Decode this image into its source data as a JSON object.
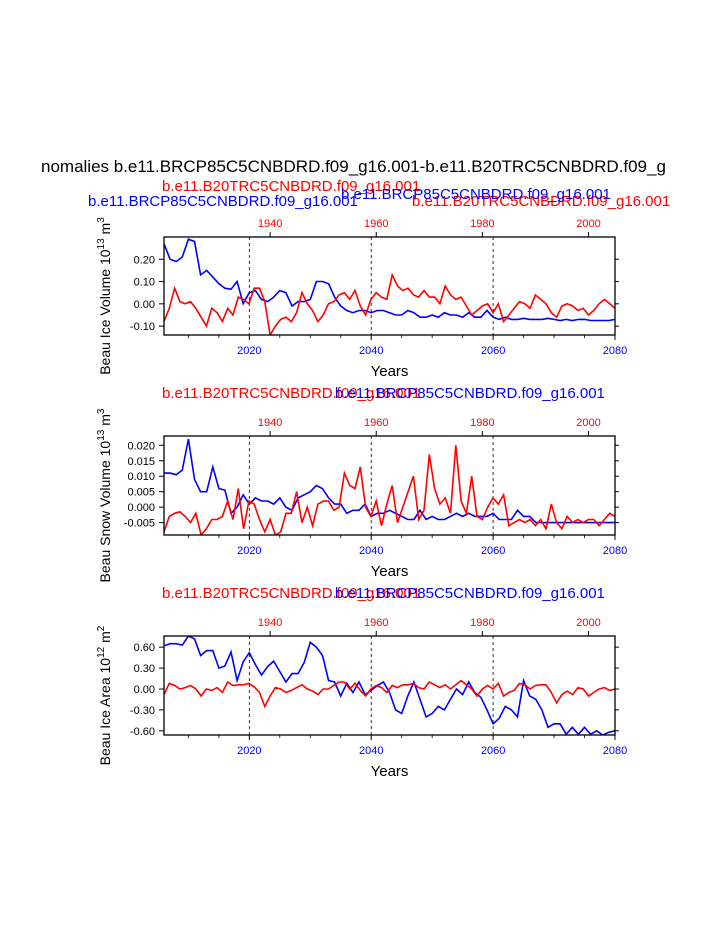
{
  "title": "nomalies b.e11.BRCP85C5CNBDRD.f09_g16.001-b.e11.B20TRC5CNBDRD.f09_g",
  "colors": {
    "rcp": "#0000ff",
    "trc": "#ff0000",
    "axis": "#000000"
  },
  "chart_data": [
    {
      "type": "line",
      "id": "ice-volume",
      "header_blue": "b.e11.BRCP85C5CNBDRD.f09_g16.001",
      "header_red": "b.e11.B20TRC5CNBDRD.f09_g16.001",
      "header_overlap_blue": "b.e11.BRCP85C5CNBDRD.f09_g16.001",
      "header_extra_red": "b.e11.B20TRC5CNBDRD.f09_g16.001",
      "top_axis_label": "",
      "xlabel": "Years",
      "ylabel": "Beau Ice Volume 10",
      "ylabel_exp": "13",
      "ylabel_unit": " m",
      "ylabel_unit_exp": "3",
      "xlim_bottom": [
        2006,
        2080
      ],
      "xlim_top": [
        1920,
        2005
      ],
      "ylim": [
        -0.14,
        0.3
      ],
      "yticks": [
        -0.1,
        0.0,
        0.1,
        0.2
      ],
      "ytick_labels": [
        "-0.10",
        "0.00",
        "0.10",
        "0.20"
      ],
      "xticks_bottom": [
        2020,
        2040,
        2060,
        2080
      ],
      "xticks_top": [
        1940,
        1960,
        1980,
        2000
      ],
      "gridlines_x": [
        2020,
        2040,
        2060
      ],
      "series": [
        {
          "name": "b.e11.BRCP85C5CNBDRD.f09_g16.001",
          "color": "blue",
          "x_start": 2006,
          "values": [
            0.27,
            0.2,
            0.19,
            0.21,
            0.29,
            0.28,
            0.13,
            0.15,
            0.12,
            0.09,
            0.07,
            0.065,
            0.1,
            0.0,
            0.05,
            0.06,
            0.02,
            0.01,
            0.03,
            0.06,
            0.05,
            -0.01,
            0.01,
            0.01,
            0.02,
            0.1,
            0.1,
            0.09,
            0.03,
            -0.01,
            -0.03,
            -0.04,
            -0.03,
            -0.03,
            -0.04,
            -0.03,
            -0.03,
            -0.04,
            -0.05,
            -0.05,
            -0.03,
            -0.04,
            -0.06,
            -0.06,
            -0.05,
            -0.06,
            -0.04,
            -0.05,
            -0.05,
            -0.06,
            -0.04,
            -0.06,
            -0.06,
            -0.03,
            -0.06,
            -0.07,
            -0.06,
            -0.07,
            -0.07,
            -0.065,
            -0.07,
            -0.07,
            -0.07,
            -0.065,
            -0.07,
            -0.075,
            -0.07,
            -0.075,
            -0.07,
            -0.07,
            -0.075,
            -0.075,
            -0.075,
            -0.075,
            -0.07
          ]
        },
        {
          "name": "b.e11.B20TRC5CNBDRD.f09_g16.001",
          "color": "red",
          "x_start": 1920,
          "values": [
            -0.08,
            -0.02,
            0.07,
            0.01,
            0.0,
            0.01,
            -0.02,
            -0.06,
            -0.1,
            -0.02,
            -0.04,
            -0.08,
            -0.02,
            -0.05,
            0.03,
            0.02,
            0.0,
            0.07,
            0.07,
            0.01,
            -0.14,
            -0.1,
            -0.07,
            -0.06,
            -0.08,
            -0.04,
            0.05,
            0.0,
            -0.03,
            -0.08,
            -0.05,
            0.0,
            0.01,
            0.04,
            0.05,
            0.02,
            0.06,
            -0.01,
            -0.05,
            0.02,
            0.05,
            0.03,
            0.02,
            0.13,
            0.08,
            0.06,
            0.07,
            0.04,
            0.03,
            0.06,
            0.03,
            0.03,
            0.0,
            0.08,
            0.04,
            0.02,
            0.03,
            -0.01,
            -0.05,
            -0.03,
            -0.01,
            0.0,
            -0.04,
            0.0,
            -0.08,
            -0.05,
            -0.02,
            0.01,
            0.0,
            -0.02,
            0.04,
            0.02,
            0.0,
            -0.04,
            -0.06,
            -0.01,
            0.0,
            -0.01,
            -0.03,
            -0.02,
            -0.05,
            -0.03,
            0.0,
            0.02,
            0.0,
            -0.02
          ]
        }
      ]
    },
    {
      "type": "line",
      "id": "snow-volume",
      "header_blue": "b.e11.BRCP85C5CNBDRD.f09_g16.001",
      "header_red": "b.e11.B20TRC5CNBDRD.f09_g16.001",
      "xlabel": "Years",
      "ylabel": "Beau Snow Volume 10",
      "ylabel_exp": "13",
      "ylabel_unit": " m",
      "ylabel_unit_exp": "3",
      "xlim_bottom": [
        2006,
        2080
      ],
      "xlim_top": [
        1920,
        2005
      ],
      "ylim": [
        -0.009,
        0.023
      ],
      "yticks": [
        -0.005,
        0.0,
        0.005,
        0.01,
        0.015,
        0.02
      ],
      "ytick_labels": [
        "-0.005",
        "0.000",
        "0.005",
        "0.010",
        "0.015",
        "0.020"
      ],
      "xticks_bottom": [
        2020,
        2040,
        2060,
        2080
      ],
      "xticks_top": [
        1940,
        1960,
        1980,
        2000
      ],
      "gridlines_x": [
        2020,
        2040,
        2060
      ],
      "series": [
        {
          "name": "b.e11.BRCP85C5CNBDRD.f09_g16.001",
          "color": "blue",
          "x_start": 2006,
          "values": [
            0.011,
            0.011,
            0.0105,
            0.012,
            0.022,
            0.009,
            0.005,
            0.005,
            0.013,
            0.006,
            0.0055,
            -0.002,
            0.0,
            0.004,
            0.001,
            0.003,
            0.002,
            0.002,
            0.001,
            0.003,
            0.0,
            -0.001,
            0.003,
            0.004,
            0.005,
            0.007,
            0.006,
            0.003,
            0.001,
            0.001,
            -0.002,
            -0.001,
            -0.001,
            0.001,
            -0.003,
            -0.002,
            -0.002,
            -0.001,
            -0.002,
            -0.003,
            -0.004,
            -0.004,
            -0.001,
            -0.004,
            -0.003,
            -0.004,
            -0.004,
            -0.003,
            -0.002,
            -0.003,
            -0.002,
            -0.003,
            -0.003,
            -0.003,
            -0.002,
            -0.004,
            -0.004,
            -0.004,
            -0.001,
            -0.003,
            -0.003,
            -0.005,
            -0.005,
            -0.005,
            -0.005,
            -0.005,
            -0.005,
            -0.005,
            -0.005,
            -0.005,
            -0.005,
            -0.005,
            -0.005,
            -0.005,
            -0.005
          ]
        },
        {
          "name": "b.e11.B20TRC5CNBDRD.f09_g16.001",
          "color": "red",
          "x_start": 1920,
          "values": [
            -0.008,
            -0.003,
            -0.002,
            -0.0015,
            -0.003,
            -0.005,
            -0.002,
            -0.009,
            -0.007,
            -0.004,
            -0.004,
            -0.003,
            0.002,
            -0.004,
            0.006,
            -0.007,
            0.002,
            0.001,
            -0.004,
            -0.008,
            -0.004,
            -0.009,
            -0.008,
            -0.002,
            -0.002,
            0.005,
            -0.005,
            0.0,
            -0.006,
            0.001,
            0.002,
            0.002,
            -0.001,
            0.0,
            0.011,
            0.007,
            0.006,
            0.013,
            0.0,
            -0.003,
            0.002,
            -0.006,
            0.001,
            0.007,
            -0.005,
            0.0,
            0.005,
            0.01,
            -0.004,
            -0.001,
            0.017,
            0.006,
            0.001,
            0.003,
            -0.002,
            0.02,
            0.002,
            -0.002,
            0.01,
            -0.003,
            -0.004,
            0.0,
            0.003,
            0.001,
            0.004,
            -0.006,
            -0.005,
            -0.004,
            -0.005,
            -0.004,
            -0.006,
            -0.004,
            -0.007,
            0.001,
            -0.005,
            -0.007,
            -0.003,
            -0.005,
            -0.004,
            -0.005,
            -0.004,
            -0.004,
            -0.006,
            -0.004,
            -0.002,
            -0.003
          ]
        }
      ]
    },
    {
      "type": "line",
      "id": "ice-area",
      "header_blue": "b.e11.BRCP85C5CNBDRD.f09_g16.001",
      "header_red": "b.e11.B20TRC5CNBDRD.f09_g16.001",
      "xlabel": "Years",
      "ylabel": "Beau Ice Area 10",
      "ylabel_exp": "12",
      "ylabel_unit": " m",
      "ylabel_unit_exp": "2",
      "xlim_bottom": [
        2006,
        2080
      ],
      "xlim_top": [
        1920,
        2005
      ],
      "ylim": [
        -0.66,
        0.76
      ],
      "yticks": [
        -0.6,
        -0.3,
        0.0,
        0.3,
        0.6
      ],
      "ytick_labels": [
        "-0.60",
        "-0.30",
        "0.00",
        "0.30",
        "0.60"
      ],
      "xticks_bottom": [
        2020,
        2040,
        2060,
        2080
      ],
      "xticks_top": [
        1940,
        1960,
        1980,
        2000
      ],
      "gridlines_x": [
        2020,
        2040,
        2060
      ],
      "series": [
        {
          "name": "b.e11.BRCP85C5CNBDRD.f09_g16.001",
          "color": "blue",
          "x_start": 2006,
          "values": [
            0.62,
            0.65,
            0.65,
            0.63,
            0.76,
            0.72,
            0.48,
            0.55,
            0.55,
            0.3,
            0.33,
            0.53,
            0.12,
            0.39,
            0.52,
            0.35,
            0.2,
            0.32,
            0.4,
            0.25,
            0.1,
            0.22,
            0.22,
            0.38,
            0.67,
            0.6,
            0.48,
            0.12,
            0.1,
            -0.1,
            0.08,
            -0.05,
            0.1,
            -0.08,
            -0.02,
            0.05,
            0.1,
            -0.05,
            -0.3,
            -0.35,
            -0.1,
            0.1,
            -0.15,
            -0.4,
            -0.35,
            -0.25,
            -0.3,
            -0.15,
            0.0,
            -0.08,
            0.1,
            -0.05,
            -0.12,
            -0.3,
            -0.5,
            -0.42,
            -0.25,
            -0.3,
            -0.4,
            0.12,
            -0.1,
            -0.15,
            -0.3,
            -0.55,
            -0.5,
            -0.5,
            -0.65,
            -0.55,
            -0.65,
            -0.55,
            -0.65,
            -0.6,
            -0.66,
            -0.62,
            -0.6
          ]
        },
        {
          "name": "b.e11.B20TRC5CNBDRD.f09_g16.001",
          "color": "red",
          "x_start": 1920,
          "values": [
            -0.08,
            0.08,
            0.05,
            0.0,
            0.02,
            0.05,
            0.0,
            -0.1,
            0.0,
            -0.02,
            0.02,
            -0.05,
            0.1,
            0.05,
            0.06,
            0.06,
            0.08,
            0.03,
            -0.05,
            -0.25,
            -0.1,
            0.02,
            0.0,
            -0.05,
            -0.02,
            0.02,
            0.06,
            0.0,
            -0.03,
            -0.08,
            0.0,
            0.0,
            0.05,
            0.1,
            0.1,
            0.0,
            0.08,
            -0.02,
            -0.1,
            0.0,
            0.05,
            0.02,
            -0.05,
            0.05,
            0.02,
            0.06,
            0.06,
            0.08,
            0.02,
            0.0,
            0.1,
            0.06,
            0.02,
            0.06,
            0.0,
            0.06,
            0.12,
            0.06,
            0.0,
            -0.1,
            0.0,
            0.05,
            0.0,
            0.08,
            -0.1,
            -0.05,
            -0.02,
            0.08,
            0.06,
            0.0,
            0.05,
            0.06,
            0.06,
            -0.05,
            -0.2,
            -0.08,
            -0.03,
            -0.08,
            0.02,
            0.0,
            -0.1,
            -0.05,
            0.0,
            0.02,
            -0.02,
            0.0
          ]
        }
      ]
    }
  ]
}
